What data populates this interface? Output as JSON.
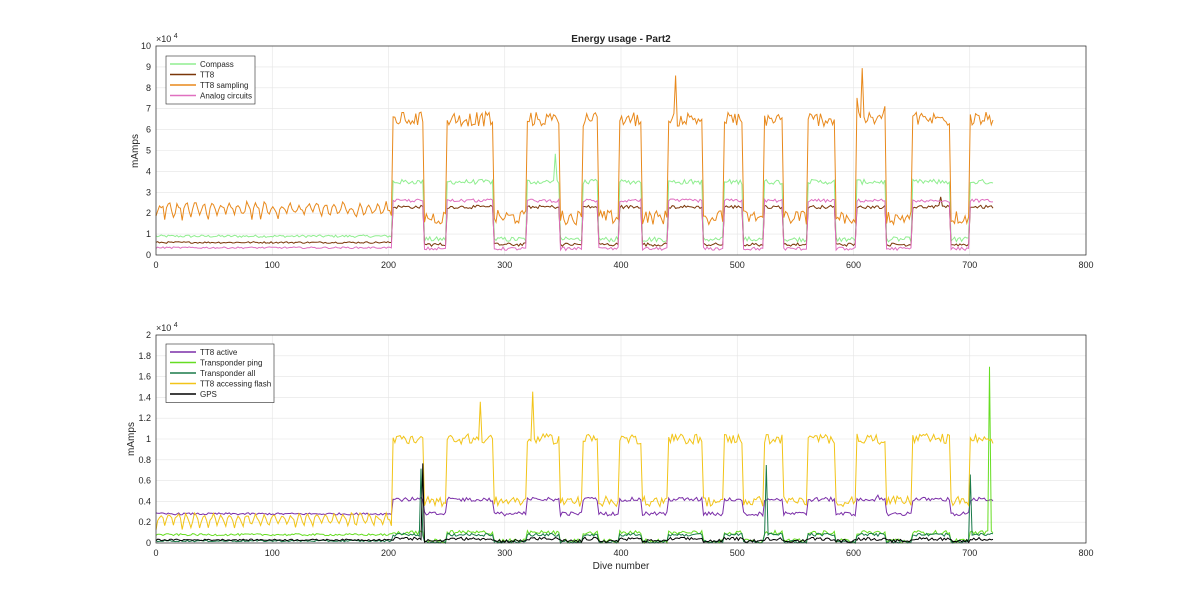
{
  "chart_data": [
    {
      "type": "line",
      "title": "Energy usage - Part2",
      "xlabel": "",
      "ylabel": "mAmps",
      "exponent_label": "×10",
      "exponent_power": "4",
      "xlim": [
        0,
        800
      ],
      "ylim": [
        0,
        10
      ],
      "y_multiplier": 10000,
      "xticks": [
        "0",
        "100",
        "200",
        "300",
        "400",
        "500",
        "600",
        "700",
        "800"
      ],
      "yticks": [
        "0",
        "1",
        "2",
        "3",
        "4",
        "5",
        "6",
        "7",
        "8",
        "9",
        "10"
      ],
      "grid": true,
      "legend_position": "top-left",
      "series": [
        {
          "name": "Compass",
          "color": "#90ee90",
          "low": 0.75,
          "high": 3.5,
          "pre": 0.9,
          "peak": 5.1,
          "jitter": 0.12
        },
        {
          "name": "TT8",
          "color": "#7a3608",
          "low": 0.5,
          "high": 2.3,
          "pre": 0.6,
          "peak": 2.8,
          "jitter": 0.08
        },
        {
          "name": "TT8 sampling",
          "color": "#e8891c",
          "low": 1.8,
          "high": 6.5,
          "pre": 1.8,
          "peak": 9.2,
          "jitter": 0.35
        },
        {
          "name": "Analog circuits",
          "color": "#e070c0",
          "low": 0.3,
          "high": 2.6,
          "pre": 0.35,
          "peak": 3.4,
          "jitter": 0.08
        }
      ]
    },
    {
      "type": "line",
      "title": "",
      "xlabel": "Dive number",
      "ylabel": "mAmps",
      "exponent_label": "×10",
      "exponent_power": "4",
      "xlim": [
        0,
        800
      ],
      "ylim": [
        0,
        2
      ],
      "y_multiplier": 10000,
      "xticks": [
        "0",
        "100",
        "200",
        "300",
        "400",
        "500",
        "600",
        "700",
        "800"
      ],
      "yticks": [
        "0",
        "0.2",
        "0.4",
        "0.6",
        "0.8",
        "1",
        "1.2",
        "1.4",
        "1.6",
        "1.8",
        "2"
      ],
      "grid": true,
      "legend_position": "top-left",
      "series": [
        {
          "name": "TT8 active",
          "color": "#7b2fa8",
          "low": 0.28,
          "high": 0.42,
          "pre": 0.28,
          "peak": 0.5,
          "jitter": 0.02
        },
        {
          "name": "Transponder ping",
          "color": "#66dd22",
          "low": 0.02,
          "high": 0.1,
          "pre": 0.08,
          "peak": 1.9,
          "jitter": 0.02
        },
        {
          "name": "Transponder all",
          "color": "#1a7a4a",
          "low": 0.01,
          "high": 0.08,
          "pre": 0.02,
          "peak": 0.86,
          "jitter": 0.015
        },
        {
          "name": "TT8 accessing flash",
          "color": "#f2c418",
          "low": 0.4,
          "high": 1.0,
          "pre": 0.15,
          "peak": 1.5,
          "jitter": 0.05
        },
        {
          "name": "GPS",
          "color": "#000000",
          "low": 0.02,
          "high": 0.04,
          "pre": 0.03,
          "peak": 0.88,
          "jitter": 0.015
        }
      ]
    }
  ]
}
